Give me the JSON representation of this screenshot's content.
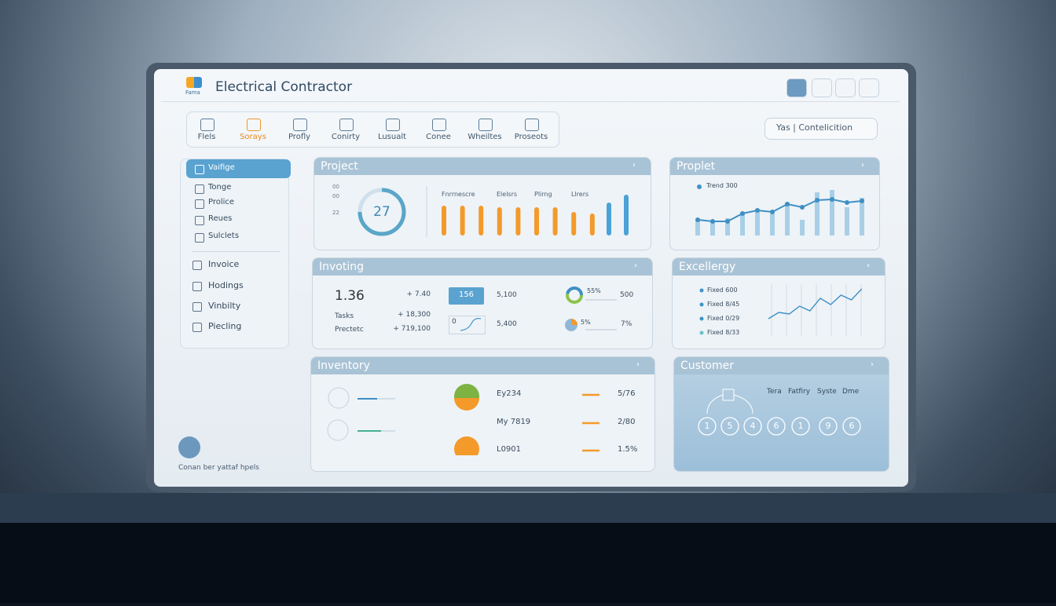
{
  "header": {
    "logo": "Fama",
    "title": "Electrical Contractor"
  },
  "nav": {
    "tabs": [
      "Flels",
      "Sorays",
      "Profly",
      "Conirty",
      "Lusualt",
      "Conee",
      "Wheiltes",
      "Proseots"
    ],
    "search": "Yas | Contelicition"
  },
  "sidebar": {
    "items": [
      "Vaifige",
      "Tonge",
      "Prolice",
      "Reues",
      "Sulclets",
      "Invoice",
      "Hodings",
      "Vinbilty",
      "Piecling"
    ],
    "footer": "Conan ber yattaf hpels"
  },
  "project": {
    "title": "Project",
    "gauge": "27",
    "axis": [
      "00",
      "00",
      "22"
    ],
    "labels": [
      "Fnrrnescre",
      "Elelsrs",
      "Plirng",
      "Llrers"
    ],
    "orange": [
      38,
      38,
      38,
      36,
      36,
      36,
      36,
      30,
      28
    ],
    "blue": [
      42,
      52
    ]
  },
  "proplet": {
    "title": "Proplet",
    "legend": "Trend 300",
    "line": [
      20,
      18,
      18,
      28,
      32,
      30,
      40,
      36,
      45,
      46,
      42,
      44
    ],
    "bars": [
      20,
      18,
      22,
      30,
      32,
      28,
      42,
      20,
      55,
      58,
      36,
      48
    ]
  },
  "invoting": {
    "title": "Invoting",
    "main": "1.36",
    "rows": [
      "Tasks",
      "Prectetc"
    ],
    "deltas": [
      "+ 7.40",
      "+ 18,300",
      "+ 719,100"
    ],
    "badge": "156",
    "spark": "0",
    "mid": [
      "5,100",
      "5,400"
    ],
    "pies": [
      "55%",
      "5%"
    ],
    "right": [
      "500",
      "7%"
    ]
  },
  "excellergy": {
    "title": "Excellergy",
    "legend": [
      "Fixed 600",
      "Fixed 8/45",
      "Fixed 0/29",
      "Fixed 8/33"
    ],
    "line": [
      10,
      18,
      16,
      26,
      20,
      36,
      28,
      40,
      34,
      48
    ]
  },
  "inventory": {
    "title": "Inventory",
    "names": [
      "Ey234",
      "My 7819",
      "L0901"
    ],
    "values": [
      "5/76",
      "2/80",
      "1.5%"
    ]
  },
  "customer": {
    "title": "Customer",
    "heads": [
      "Tera",
      "Fatfiry",
      "Syste",
      "Dme"
    ],
    "nodes": [
      "1",
      "5",
      "4",
      "6",
      "1",
      "9",
      "6"
    ]
  }
}
